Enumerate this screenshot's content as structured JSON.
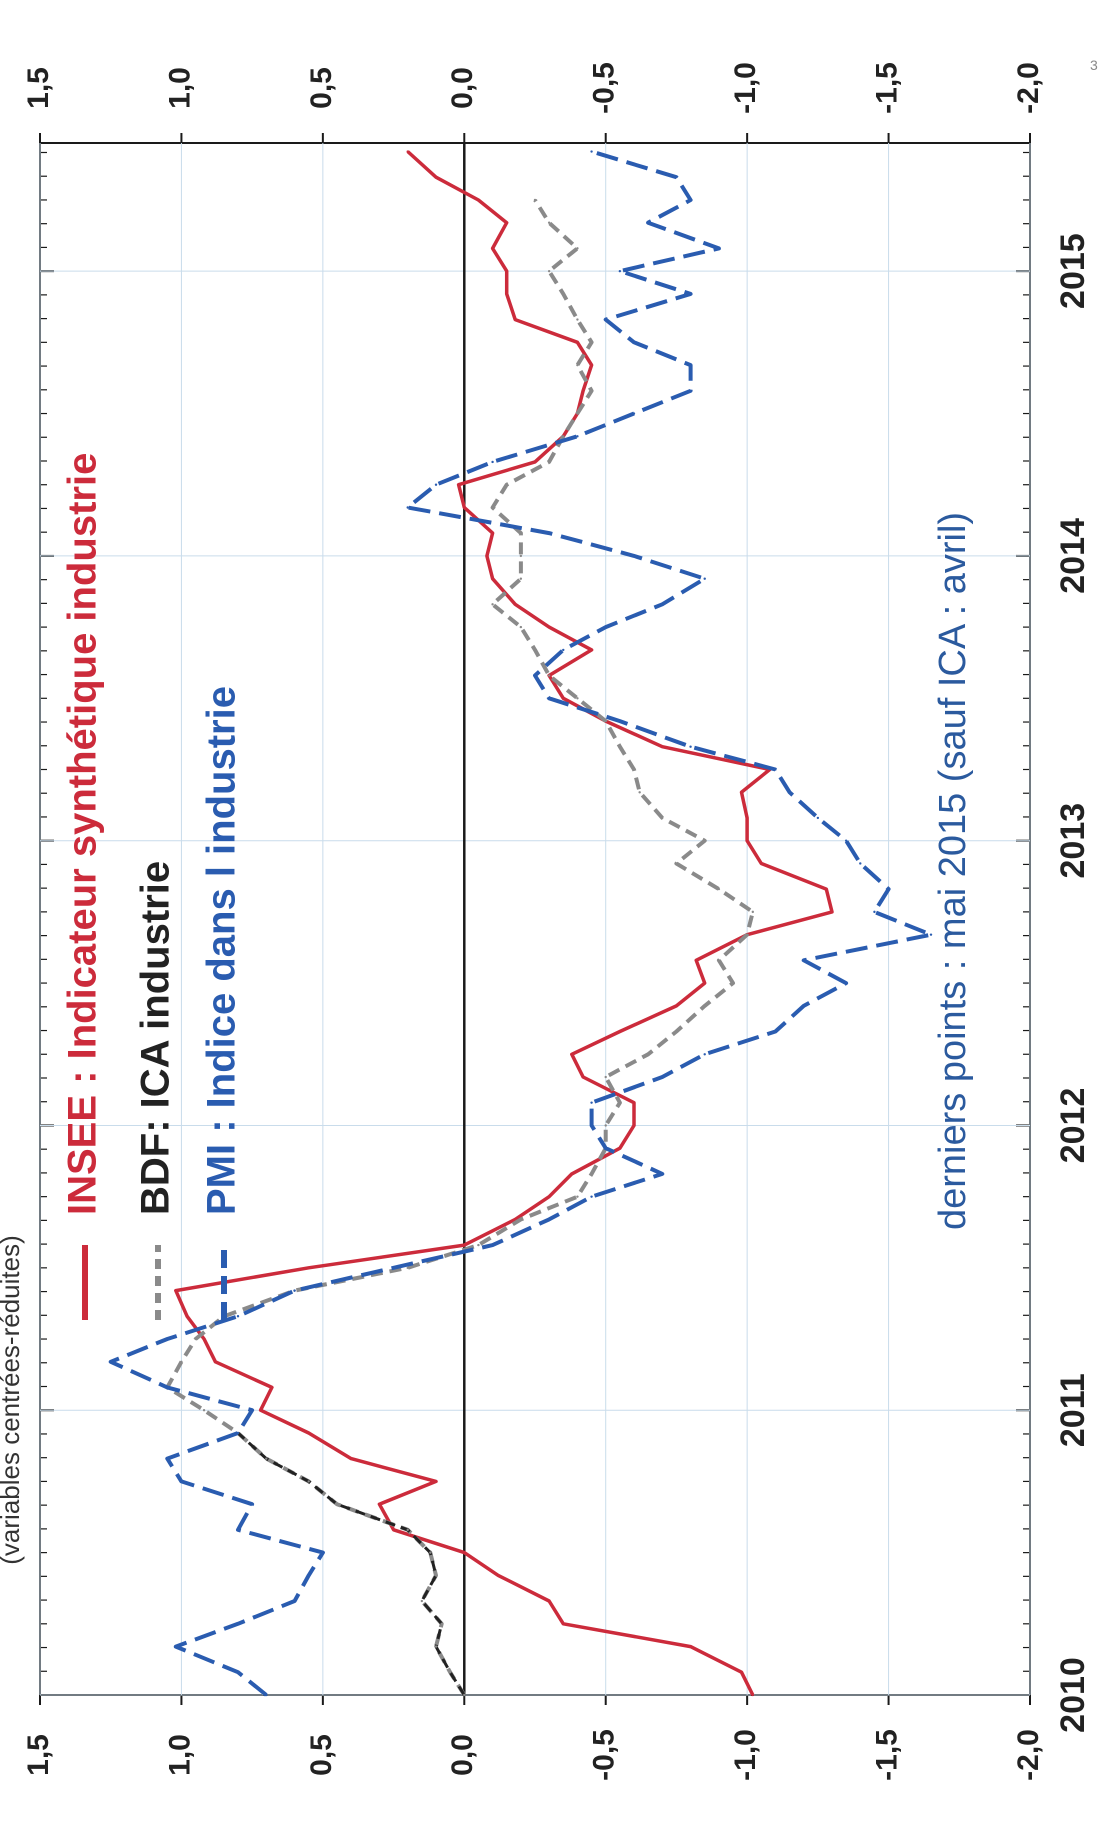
{
  "page": {
    "top_note": "(variables centrées-réduites)",
    "page_number": "3"
  },
  "chart_data": {
    "type": "line",
    "orientation": "rotated-90-clockwise",
    "xlabel": "",
    "ylabel": "",
    "x_tick_labels": [
      "2010",
      "2011",
      "2012",
      "2013",
      "2014",
      "2015"
    ],
    "x_range": [
      2010.0,
      2015.45
    ],
    "y_tick_labels_left": [
      "1,5",
      "1,0",
      "0,5",
      "0,0",
      "-0,5",
      "-1,0",
      "-1,5",
      "-2,0"
    ],
    "y_tick_labels_right": [
      "1,5",
      "1,0",
      "0,5",
      "0,0",
      "-0,5",
      "-1,0",
      "-1,5",
      "-2,0"
    ],
    "ylim": [
      -2.0,
      1.5
    ],
    "grid": true,
    "zero_line": true,
    "legend_position": "top-left",
    "note": "derniers points : mai 2015 (sauf ICA : avril)",
    "colors": {
      "insee": "#cc2b3b",
      "bdf": "#8a8a8a",
      "bdf_early": "#222222",
      "pmi": "#2a5cb0",
      "note": "#2b5a9e",
      "grid": "#c9dceb",
      "axis": "#1a1a1a"
    },
    "series": [
      {
        "key": "insee",
        "name": "INSEE : Indicateur synthétique industrie",
        "style": "solid",
        "points": [
          [
            2010.0,
            -1.02
          ],
          [
            2010.08,
            -0.98
          ],
          [
            2010.17,
            -0.8
          ],
          [
            2010.25,
            -0.35
          ],
          [
            2010.33,
            -0.3
          ],
          [
            2010.42,
            -0.12
          ],
          [
            2010.5,
            0.0
          ],
          [
            2010.58,
            0.25
          ],
          [
            2010.67,
            0.3
          ],
          [
            2010.75,
            0.1
          ],
          [
            2010.83,
            0.4
          ],
          [
            2010.92,
            0.55
          ],
          [
            2011.0,
            0.72
          ],
          [
            2011.08,
            0.68
          ],
          [
            2011.17,
            0.88
          ],
          [
            2011.25,
            0.92
          ],
          [
            2011.33,
            0.98
          ],
          [
            2011.42,
            1.02
          ],
          [
            2011.5,
            0.55
          ],
          [
            2011.58,
            0.0
          ],
          [
            2011.67,
            -0.18
          ],
          [
            2011.75,
            -0.3
          ],
          [
            2011.83,
            -0.38
          ],
          [
            2011.92,
            -0.55
          ],
          [
            2012.0,
            -0.6
          ],
          [
            2012.08,
            -0.6
          ],
          [
            2012.17,
            -0.42
          ],
          [
            2012.25,
            -0.38
          ],
          [
            2012.33,
            -0.55
          ],
          [
            2012.42,
            -0.75
          ],
          [
            2012.5,
            -0.85
          ],
          [
            2012.58,
            -0.82
          ],
          [
            2012.67,
            -1.0
          ],
          [
            2012.75,
            -1.3
          ],
          [
            2012.83,
            -1.28
          ],
          [
            2012.92,
            -1.05
          ],
          [
            2013.0,
            -1.0
          ],
          [
            2013.08,
            -1.0
          ],
          [
            2013.17,
            -0.98
          ],
          [
            2013.25,
            -1.08
          ],
          [
            2013.33,
            -0.7
          ],
          [
            2013.42,
            -0.5
          ],
          [
            2013.5,
            -0.35
          ],
          [
            2013.58,
            -0.3
          ],
          [
            2013.67,
            -0.45
          ],
          [
            2013.75,
            -0.3
          ],
          [
            2013.83,
            -0.18
          ],
          [
            2013.92,
            -0.1
          ],
          [
            2014.0,
            -0.08
          ],
          [
            2014.08,
            -0.1
          ],
          [
            2014.17,
            0.0
          ],
          [
            2014.25,
            0.02
          ],
          [
            2014.33,
            -0.25
          ],
          [
            2014.42,
            -0.35
          ],
          [
            2014.5,
            -0.4
          ],
          [
            2014.58,
            -0.42
          ],
          [
            2014.67,
            -0.45
          ],
          [
            2014.75,
            -0.4
          ],
          [
            2014.83,
            -0.18
          ],
          [
            2014.92,
            -0.15
          ],
          [
            2015.0,
            -0.15
          ],
          [
            2015.08,
            -0.1
          ],
          [
            2015.17,
            -0.15
          ],
          [
            2015.25,
            -0.05
          ],
          [
            2015.33,
            0.1
          ],
          [
            2015.42,
            0.2
          ]
        ]
      },
      {
        "key": "bdf",
        "name": "BDF: ICA industrie",
        "style": "dashed",
        "points": [
          [
            2010.0,
            0.0
          ],
          [
            2010.08,
            0.05
          ],
          [
            2010.17,
            0.1
          ],
          [
            2010.25,
            0.08
          ],
          [
            2010.33,
            0.15
          ],
          [
            2010.42,
            0.1
          ],
          [
            2010.5,
            0.12
          ],
          [
            2010.58,
            0.2
          ],
          [
            2010.67,
            0.45
          ],
          [
            2010.75,
            0.55
          ],
          [
            2010.83,
            0.7
          ],
          [
            2010.92,
            0.8
          ],
          [
            2011.0,
            0.92
          ],
          [
            2011.08,
            1.05
          ],
          [
            2011.17,
            1.0
          ],
          [
            2011.25,
            0.95
          ],
          [
            2011.33,
            0.85
          ],
          [
            2011.42,
            0.6
          ],
          [
            2011.5,
            0.2
          ],
          [
            2011.58,
            -0.05
          ],
          [
            2011.67,
            -0.2
          ],
          [
            2011.75,
            -0.4
          ],
          [
            2011.83,
            -0.45
          ],
          [
            2011.92,
            -0.5
          ],
          [
            2012.0,
            -0.5
          ],
          [
            2012.08,
            -0.55
          ],
          [
            2012.17,
            -0.5
          ],
          [
            2012.25,
            -0.65
          ],
          [
            2012.33,
            -0.75
          ],
          [
            2012.42,
            -0.85
          ],
          [
            2012.5,
            -0.95
          ],
          [
            2012.58,
            -0.9
          ],
          [
            2012.67,
            -1.0
          ],
          [
            2012.75,
            -1.02
          ],
          [
            2012.83,
            -0.9
          ],
          [
            2012.92,
            -0.75
          ],
          [
            2013.0,
            -0.85
          ],
          [
            2013.08,
            -0.7
          ],
          [
            2013.17,
            -0.62
          ],
          [
            2013.25,
            -0.6
          ],
          [
            2013.33,
            -0.55
          ],
          [
            2013.42,
            -0.5
          ],
          [
            2013.5,
            -0.4
          ],
          [
            2013.58,
            -0.3
          ],
          [
            2013.67,
            -0.25
          ],
          [
            2013.75,
            -0.2
          ],
          [
            2013.83,
            -0.1
          ],
          [
            2013.92,
            -0.2
          ],
          [
            2014.0,
            -0.2
          ],
          [
            2014.08,
            -0.2
          ],
          [
            2014.17,
            -0.1
          ],
          [
            2014.25,
            -0.15
          ],
          [
            2014.33,
            -0.3
          ],
          [
            2014.42,
            -0.35
          ],
          [
            2014.5,
            -0.4
          ],
          [
            2014.58,
            -0.45
          ],
          [
            2014.67,
            -0.4
          ],
          [
            2014.75,
            -0.45
          ],
          [
            2014.83,
            -0.4
          ],
          [
            2014.92,
            -0.35
          ],
          [
            2015.0,
            -0.3
          ],
          [
            2015.08,
            -0.4
          ],
          [
            2015.17,
            -0.3
          ],
          [
            2015.25,
            -0.25
          ]
        ]
      },
      {
        "key": "pmi",
        "name": "PMI : Indice dans l industrie",
        "style": "dashed",
        "points": [
          [
            2010.0,
            0.7
          ],
          [
            2010.08,
            0.8
          ],
          [
            2010.17,
            1.02
          ],
          [
            2010.25,
            0.8
          ],
          [
            2010.33,
            0.6
          ],
          [
            2010.42,
            0.55
          ],
          [
            2010.5,
            0.5
          ],
          [
            2010.58,
            0.8
          ],
          [
            2010.67,
            0.75
          ],
          [
            2010.75,
            1.0
          ],
          [
            2010.83,
            1.05
          ],
          [
            2010.92,
            0.8
          ],
          [
            2011.0,
            0.75
          ],
          [
            2011.08,
            1.05
          ],
          [
            2011.17,
            1.25
          ],
          [
            2011.25,
            1.05
          ],
          [
            2011.33,
            0.8
          ],
          [
            2011.42,
            0.6
          ],
          [
            2011.5,
            0.25
          ],
          [
            2011.58,
            -0.1
          ],
          [
            2011.67,
            -0.3
          ],
          [
            2011.75,
            -0.45
          ],
          [
            2011.83,
            -0.7
          ],
          [
            2011.92,
            -0.5
          ],
          [
            2012.0,
            -0.45
          ],
          [
            2012.08,
            -0.45
          ],
          [
            2012.17,
            -0.7
          ],
          [
            2012.25,
            -0.85
          ],
          [
            2012.33,
            -1.1
          ],
          [
            2012.42,
            -1.2
          ],
          [
            2012.5,
            -1.35
          ],
          [
            2012.58,
            -1.2
          ],
          [
            2012.67,
            -1.65
          ],
          [
            2012.75,
            -1.45
          ],
          [
            2012.83,
            -1.5
          ],
          [
            2012.92,
            -1.4
          ],
          [
            2013.0,
            -1.35
          ],
          [
            2013.08,
            -1.25
          ],
          [
            2013.17,
            -1.15
          ],
          [
            2013.25,
            -1.1
          ],
          [
            2013.33,
            -0.8
          ],
          [
            2013.42,
            -0.55
          ],
          [
            2013.5,
            -0.3
          ],
          [
            2013.58,
            -0.25
          ],
          [
            2013.67,
            -0.35
          ],
          [
            2013.75,
            -0.5
          ],
          [
            2013.83,
            -0.7
          ],
          [
            2013.92,
            -0.85
          ],
          [
            2014.0,
            -0.6
          ],
          [
            2014.08,
            -0.3
          ],
          [
            2014.17,
            0.2
          ],
          [
            2014.25,
            0.1
          ],
          [
            2014.33,
            -0.1
          ],
          [
            2014.42,
            -0.4
          ],
          [
            2014.5,
            -0.6
          ],
          [
            2014.58,
            -0.8
          ],
          [
            2014.67,
            -0.8
          ],
          [
            2014.75,
            -0.6
          ],
          [
            2014.83,
            -0.5
          ],
          [
            2014.92,
            -0.8
          ],
          [
            2015.0,
            -0.55
          ],
          [
            2015.08,
            -0.9
          ],
          [
            2015.17,
            -0.65
          ],
          [
            2015.25,
            -0.8
          ],
          [
            2015.33,
            -0.75
          ],
          [
            2015.42,
            -0.45
          ]
        ]
      }
    ]
  }
}
